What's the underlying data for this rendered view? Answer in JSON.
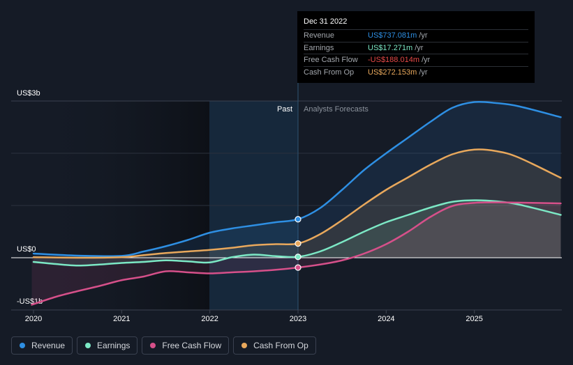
{
  "chart_data": {
    "type": "line",
    "x_ticks": [
      "2020",
      "2021",
      "2022",
      "2023",
      "2024",
      "2025"
    ],
    "y_labels": {
      "top": "US$3b",
      "zero": "US$0",
      "bottom": "-US$1b"
    },
    "ylim": [
      -1000,
      3000
    ],
    "xlim": [
      2020.0,
      2025.98
    ],
    "past_label": "Past",
    "forecast_label": "Analysts Forecasts",
    "divider_x": 2023.0,
    "series": [
      {
        "name": "Revenue",
        "color": "#2e8fe3",
        "fill": true,
        "points": [
          [
            2020.0,
            80
          ],
          [
            2020.5,
            40
          ],
          [
            2021.0,
            35
          ],
          [
            2021.25,
            120
          ],
          [
            2021.5,
            220
          ],
          [
            2021.75,
            340
          ],
          [
            2022.0,
            480
          ],
          [
            2022.25,
            560
          ],
          [
            2022.5,
            620
          ],
          [
            2022.75,
            680
          ],
          [
            2023.0,
            737
          ],
          [
            2023.25,
            950
          ],
          [
            2023.5,
            1300
          ],
          [
            2023.75,
            1680
          ],
          [
            2024.0,
            2000
          ],
          [
            2024.25,
            2300
          ],
          [
            2024.5,
            2600
          ],
          [
            2024.75,
            2870
          ],
          [
            2025.0,
            2980
          ],
          [
            2025.25,
            2960
          ],
          [
            2025.5,
            2900
          ],
          [
            2025.98,
            2690
          ]
        ]
      },
      {
        "name": "Earnings",
        "color": "#7ce8c5",
        "fill": true,
        "points": [
          [
            2020.0,
            -80
          ],
          [
            2020.25,
            -120
          ],
          [
            2020.5,
            -150
          ],
          [
            2020.75,
            -130
          ],
          [
            2021.0,
            -100
          ],
          [
            2021.25,
            -80
          ],
          [
            2021.5,
            -50
          ],
          [
            2021.75,
            -70
          ],
          [
            2022.0,
            -90
          ],
          [
            2022.25,
            10
          ],
          [
            2022.5,
            60
          ],
          [
            2022.75,
            30
          ],
          [
            2023.0,
            17
          ],
          [
            2023.25,
            120
          ],
          [
            2023.5,
            300
          ],
          [
            2023.75,
            500
          ],
          [
            2024.0,
            680
          ],
          [
            2024.25,
            820
          ],
          [
            2024.5,
            960
          ],
          [
            2024.75,
            1070
          ],
          [
            2025.0,
            1100
          ],
          [
            2025.25,
            1080
          ],
          [
            2025.5,
            1020
          ],
          [
            2025.98,
            820
          ]
        ]
      },
      {
        "name": "Free Cash Flow",
        "color": "#d6508a",
        "fill": true,
        "points": [
          [
            2019.98,
            -900
          ],
          [
            2020.25,
            -750
          ],
          [
            2020.5,
            -640
          ],
          [
            2020.75,
            -540
          ],
          [
            2021.0,
            -430
          ],
          [
            2021.25,
            -360
          ],
          [
            2021.5,
            -260
          ],
          [
            2021.75,
            -280
          ],
          [
            2022.0,
            -300
          ],
          [
            2022.25,
            -280
          ],
          [
            2022.5,
            -260
          ],
          [
            2022.75,
            -230
          ],
          [
            2023.0,
            -188
          ],
          [
            2023.25,
            -130
          ],
          [
            2023.5,
            -50
          ],
          [
            2023.75,
            80
          ],
          [
            2024.0,
            260
          ],
          [
            2024.25,
            500
          ],
          [
            2024.5,
            780
          ],
          [
            2024.75,
            990
          ],
          [
            2025.0,
            1050
          ],
          [
            2025.25,
            1060
          ],
          [
            2025.5,
            1055
          ],
          [
            2025.98,
            1040
          ]
        ]
      },
      {
        "name": "Cash From Op",
        "color": "#e8a85c",
        "fill": true,
        "points": [
          [
            2020.0,
            10
          ],
          [
            2020.5,
            0
          ],
          [
            2021.0,
            10
          ],
          [
            2021.25,
            50
          ],
          [
            2021.5,
            90
          ],
          [
            2021.75,
            120
          ],
          [
            2022.0,
            150
          ],
          [
            2022.25,
            190
          ],
          [
            2022.5,
            240
          ],
          [
            2022.75,
            260
          ],
          [
            2023.0,
            272
          ],
          [
            2023.25,
            450
          ],
          [
            2023.5,
            720
          ],
          [
            2023.75,
            1020
          ],
          [
            2024.0,
            1300
          ],
          [
            2024.25,
            1540
          ],
          [
            2024.5,
            1780
          ],
          [
            2024.75,
            1980
          ],
          [
            2025.0,
            2070
          ],
          [
            2025.25,
            2040
          ],
          [
            2025.5,
            1920
          ],
          [
            2025.98,
            1530
          ]
        ]
      }
    ]
  },
  "tooltip": {
    "date": "Dec 31 2022",
    "rows": [
      {
        "label": "Revenue",
        "value": "US$737.081m",
        "unit": "/yr",
        "color": "#2e8fe3"
      },
      {
        "label": "Earnings",
        "value": "US$17.271m",
        "unit": "/yr",
        "color": "#7ce8c5"
      },
      {
        "label": "Free Cash Flow",
        "value": "-US$188.014m",
        "unit": "/yr",
        "color": "#e84a48"
      },
      {
        "label": "Cash From Op",
        "value": "US$272.153m",
        "unit": "/yr",
        "color": "#e8a85c"
      }
    ]
  },
  "legend": [
    {
      "label": "Revenue",
      "color": "#2e8fe3"
    },
    {
      "label": "Earnings",
      "color": "#7ce8c5"
    },
    {
      "label": "Free Cash Flow",
      "color": "#d6508a"
    },
    {
      "label": "Cash From Op",
      "color": "#e8a85c"
    }
  ]
}
